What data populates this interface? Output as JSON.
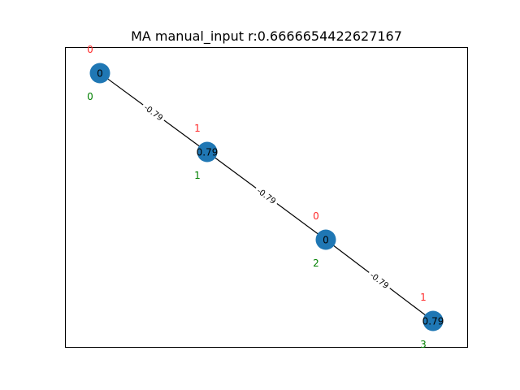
{
  "title": "MA manual_input r:0.6666654422627167",
  "colors": {
    "node": "#1f77b4",
    "edge": "#000000",
    "top_label": "#ff2a2a",
    "bottom_label": "#008000",
    "frame": "#000000"
  },
  "nodes": [
    {
      "id": "n0",
      "value": "0",
      "top": "0",
      "bottom": "0"
    },
    {
      "id": "n1",
      "value": "0.79",
      "top": "1",
      "bottom": "1"
    },
    {
      "id": "n2",
      "value": "0",
      "top": "0",
      "bottom": "2"
    },
    {
      "id": "n3",
      "value": "0.79",
      "top": "1",
      "bottom": "3"
    }
  ],
  "edges": [
    {
      "from": 0,
      "to": 1,
      "label": "-0.79"
    },
    {
      "from": 1,
      "to": 2,
      "label": "-0.79"
    },
    {
      "from": 2,
      "to": 3,
      "label": "-0.79"
    }
  ]
}
